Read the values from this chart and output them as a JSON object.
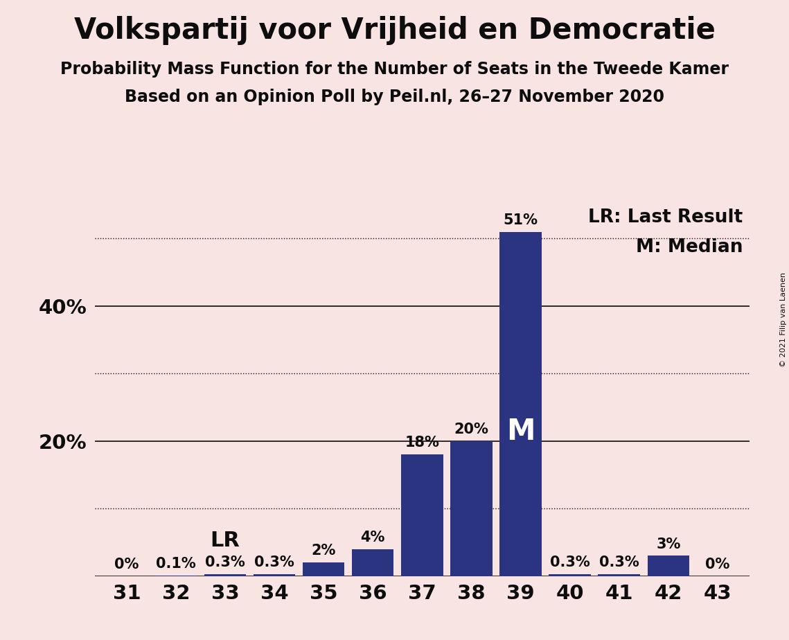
{
  "title": "Volkspartij voor Vrijheid en Democratie",
  "subtitle1": "Probability Mass Function for the Number of Seats in the Tweede Kamer",
  "subtitle2": "Based on an Opinion Poll by Peil.nl, 26–27 November 2020",
  "copyright": "© 2021 Filip van Laenen",
  "categories": [
    31,
    32,
    33,
    34,
    35,
    36,
    37,
    38,
    39,
    40,
    41,
    42,
    43
  ],
  "values": [
    0.0,
    0.1,
    0.3,
    0.3,
    2.0,
    4.0,
    18.0,
    20.0,
    51.0,
    0.3,
    0.3,
    3.0,
    0.0
  ],
  "bar_labels": [
    "0%",
    "0.1%",
    "0.3%",
    "0.3%",
    "2%",
    "4%",
    "18%",
    "20%",
    "51%",
    "0.3%",
    "0.3%",
    "3%",
    "0%"
  ],
  "bar_color": "#2b3480",
  "background_color": "#f9e4e4",
  "text_color": "#0d0d0d",
  "ylim": [
    0,
    55
  ],
  "yticks": [
    20,
    40
  ],
  "ytick_labels": [
    "20%",
    "40%"
  ],
  "solid_gridlines": [
    0,
    20,
    40
  ],
  "dotted_gridlines": [
    10,
    30,
    50
  ],
  "lr_seat": 33,
  "median_seat": 39,
  "legend_lr": "LR: Last Result",
  "legend_m": "M: Median",
  "lr_label": "LR",
  "m_label": "M",
  "title_fontsize": 30,
  "subtitle_fontsize": 17,
  "axis_label_fontsize": 21,
  "bar_label_fontsize": 15,
  "legend_fontsize": 19,
  "annotation_fontsize": 22,
  "m_fontsize": 30,
  "copyright_fontsize": 8
}
